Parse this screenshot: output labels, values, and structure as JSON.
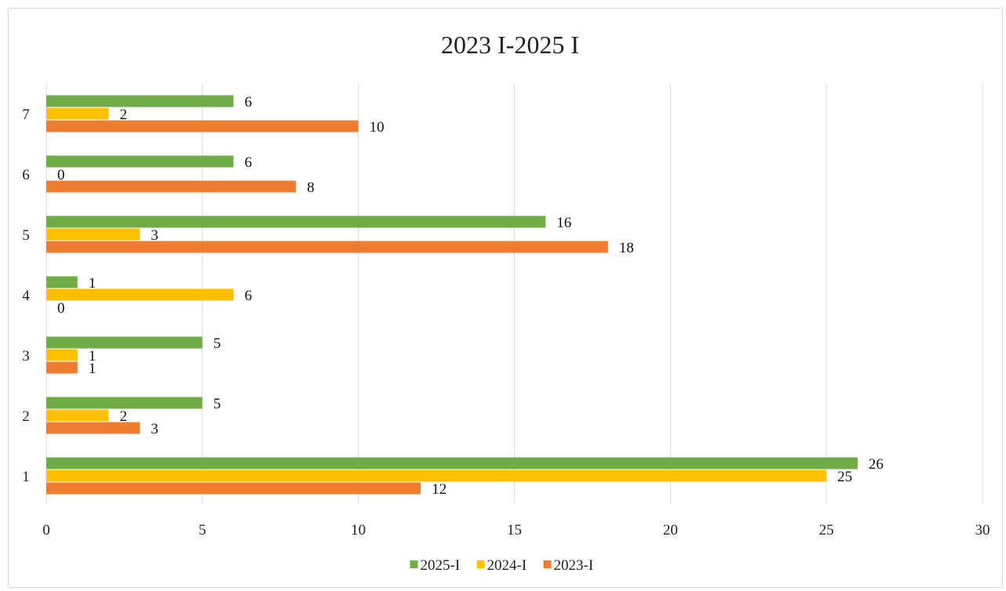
{
  "chart_data": {
    "type": "bar",
    "orientation": "horizontal",
    "title": "2023 I-2025 I",
    "categories": [
      "1",
      "2",
      "3",
      "4",
      "5",
      "6",
      "7"
    ],
    "series": [
      {
        "name": "2025-I",
        "color": "#70ad47",
        "values": [
          26,
          5,
          5,
          1,
          16,
          6,
          6
        ]
      },
      {
        "name": "2024-I",
        "color": "#ffc000",
        "values": [
          25,
          2,
          1,
          6,
          3,
          0,
          2
        ]
      },
      {
        "name": "2023-I",
        "color": "#ed7d31",
        "values": [
          12,
          3,
          1,
          0,
          18,
          8,
          10
        ]
      }
    ],
    "xlim": [
      0,
      30
    ],
    "x_ticks": [
      "0",
      "5",
      "10",
      "15",
      "20",
      "25",
      "30"
    ],
    "grid": true,
    "legend_position": "bottom",
    "data_labels": true
  }
}
